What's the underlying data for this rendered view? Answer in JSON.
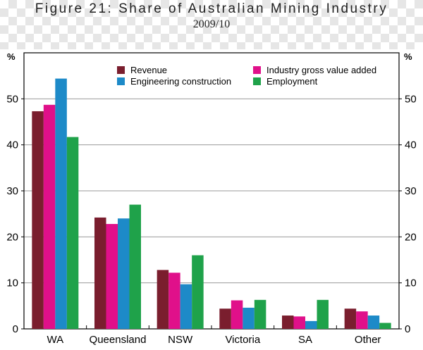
{
  "title": "Figure 21: Share of Australian Mining Industry",
  "subtitle": "2009/10",
  "colors": {
    "Revenue": "#7a1e2e",
    "Industry gross value added": "#e0108a",
    "Engineering construction": "#1d8ac8",
    "Employment": "#1fa24a"
  },
  "chart_data": {
    "type": "bar",
    "title": "Figure 21: Share of Australian Mining Industry",
    "subtitle": "2009/10",
    "y_unit_left": "%",
    "y_unit_right": "%",
    "ylim": [
      0,
      60
    ],
    "yticks": [
      0,
      10,
      20,
      30,
      40,
      50
    ],
    "grid": true,
    "legend_position": "top-right",
    "categories": [
      "WA",
      "Queensland",
      "NSW",
      "Victoria",
      "SA",
      "Other"
    ],
    "series": [
      {
        "name": "Revenue",
        "values": [
          47.3,
          24.2,
          12.8,
          4.4,
          2.9,
          4.4
        ]
      },
      {
        "name": "Industry gross value added",
        "values": [
          48.7,
          22.8,
          12.2,
          6.2,
          2.7,
          3.8
        ]
      },
      {
        "name": "Engineering construction",
        "values": [
          54.4,
          24.0,
          9.7,
          4.6,
          1.7,
          2.9
        ]
      },
      {
        "name": "Employment",
        "values": [
          41.7,
          27.0,
          16.0,
          6.3,
          6.3,
          1.3
        ]
      }
    ]
  }
}
